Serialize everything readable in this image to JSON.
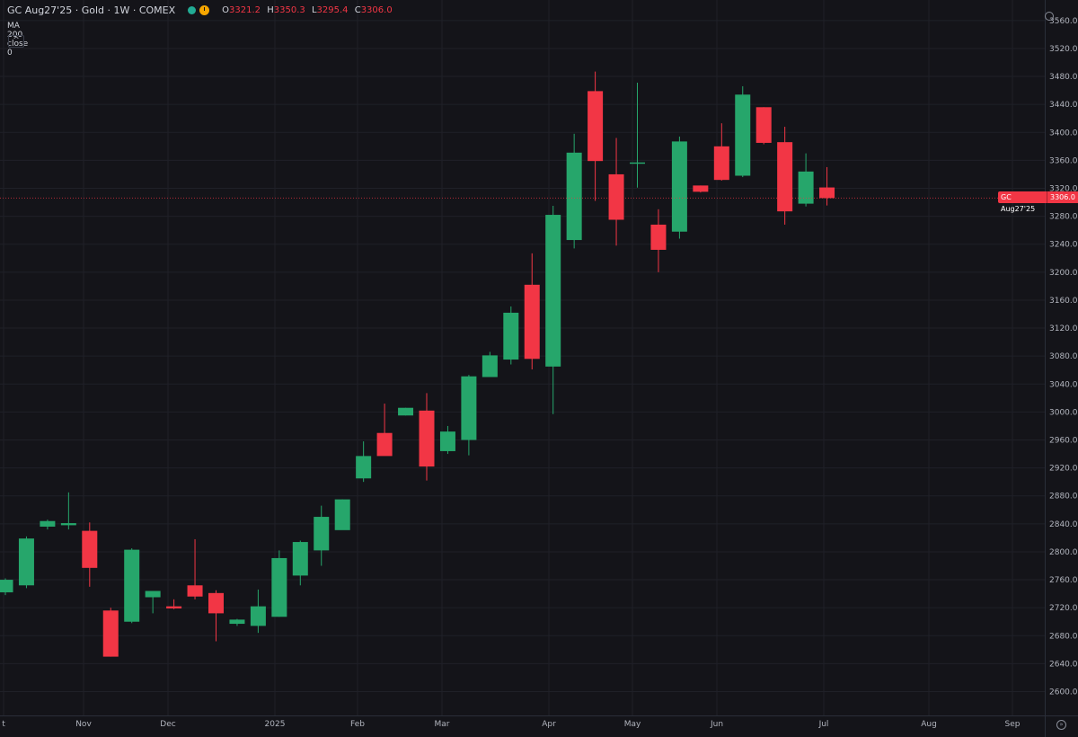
{
  "header": {
    "symbol_title": "GC Aug27'25 · Gold · 1W · COMEX",
    "ohlc": {
      "o_label": "O",
      "o_value": "3321.2",
      "h_label": "H",
      "h_value": "3350.3",
      "l_label": "L",
      "l_value": "3295.4",
      "c_label": "C",
      "c_value": "3306.0"
    },
    "indicator_label": "MA 200 close 0",
    "collapse_icon": "chevron-up-icon",
    "settings_icon": "gear-icon"
  },
  "price_tag": {
    "name": "GC Aug27'25",
    "price": "3306.0"
  },
  "colors": {
    "up": "#26a66b",
    "down": "#f23645",
    "background": "#141419",
    "grid": "#1f2028"
  },
  "chart_data": {
    "type": "candlestick",
    "yticks": [
      "2600.0",
      "2640.0",
      "2680.0",
      "2720.0",
      "2760.0",
      "2800.0",
      "2840.0",
      "2880.0",
      "2920.0",
      "2960.0",
      "3000.0",
      "3040.0",
      "3080.0",
      "3120.0",
      "3160.0",
      "3200.0",
      "3240.0",
      "3280.0",
      "3320.0",
      "3360.0",
      "3400.0",
      "3440.0",
      "3480.0",
      "3520.0",
      "3560.0"
    ],
    "xticks": [
      "t",
      "Nov",
      "Dec",
      "2025",
      "Feb",
      "Mar",
      "Apr",
      "May",
      "Jun",
      "Jul",
      "Aug",
      "Sep"
    ],
    "ylim": [
      2580,
      3585
    ],
    "last_price": 3306.0,
    "candles": [
      {
        "date": "2024-10-14",
        "o": 2742,
        "h": 2762,
        "l": 2738,
        "c": 2760
      },
      {
        "date": "2024-10-21",
        "o": 2752,
        "h": 2822,
        "l": 2748,
        "c": 2819
      },
      {
        "date": "2024-10-28",
        "o": 2836,
        "h": 2846,
        "l": 2832,
        "c": 2844
      },
      {
        "date": "2024-11-04",
        "o": 2838,
        "h": 2885,
        "l": 2832,
        "c": 2841
      },
      {
        "date": "2024-11-11",
        "o": 2830,
        "h": 2842,
        "l": 2750,
        "c": 2777
      },
      {
        "date": "2024-11-18",
        "o": 2716,
        "h": 2720,
        "l": 2650,
        "c": 2650
      },
      {
        "date": "2024-11-25",
        "o": 2700,
        "h": 2805,
        "l": 2698,
        "c": 2803
      },
      {
        "date": "2024-12-02",
        "o": 2735,
        "h": 2744,
        "l": 2712,
        "c": 2744
      },
      {
        "date": "2024-12-09",
        "o": 2722,
        "h": 2732,
        "l": 2718,
        "c": 2719
      },
      {
        "date": "2024-12-16",
        "o": 2752,
        "h": 2818,
        "l": 2732,
        "c": 2736
      },
      {
        "date": "2024-12-23",
        "o": 2741,
        "h": 2745,
        "l": 2672,
        "c": 2712
      },
      {
        "date": "2024-12-30",
        "o": 2697,
        "h": 2704,
        "l": 2694,
        "c": 2703
      },
      {
        "date": "2025-01-06",
        "o": 2694,
        "h": 2746,
        "l": 2684,
        "c": 2722
      },
      {
        "date": "2025-01-13",
        "o": 2707,
        "h": 2802,
        "l": 2707,
        "c": 2791
      },
      {
        "date": "2025-01-20",
        "o": 2766,
        "h": 2816,
        "l": 2752,
        "c": 2814
      },
      {
        "date": "2025-01-27",
        "o": 2802,
        "h": 2866,
        "l": 2780,
        "c": 2850
      },
      {
        "date": "2025-02-03",
        "o": 2831,
        "h": 2875,
        "l": 2832,
        "c": 2875
      },
      {
        "date": "2025-02-10",
        "o": 2905,
        "h": 2958,
        "l": 2900,
        "c": 2937
      },
      {
        "date": "2025-02-17",
        "o": 2970,
        "h": 3012,
        "l": 2938,
        "c": 2937
      },
      {
        "date": "2025-02-24",
        "o": 2995,
        "h": 3006,
        "l": 2995,
        "c": 3006
      },
      {
        "date": "2025-03-03",
        "o": 3002,
        "h": 3027,
        "l": 2902,
        "c": 2922
      },
      {
        "date": "2025-03-10",
        "o": 2944,
        "h": 2980,
        "l": 2940,
        "c": 2972
      },
      {
        "date": "2025-03-17",
        "o": 2960,
        "h": 3053,
        "l": 2938,
        "c": 3051
      },
      {
        "date": "2025-03-24",
        "o": 3050,
        "h": 3086,
        "l": 3050,
        "c": 3081
      },
      {
        "date": "2025-03-31",
        "o": 3075,
        "h": 3151,
        "l": 3068,
        "c": 3142
      },
      {
        "date": "2025-04-07",
        "o": 3182,
        "h": 3227,
        "l": 3061,
        "c": 3076
      },
      {
        "date": "2025-04-14",
        "o": 3065,
        "h": 3295,
        "l": 2997,
        "c": 3282
      },
      {
        "date": "2025-04-21",
        "o": 3246,
        "h": 3398,
        "l": 3234,
        "c": 3371
      },
      {
        "date": "2025-04-28",
        "o": 3459,
        "h": 3487,
        "l": 3302,
        "c": 3359
      },
      {
        "date": "2025-05-05",
        "o": 3340,
        "h": 3392,
        "l": 3238,
        "c": 3275
      },
      {
        "date": "2025-05-12",
        "o": 3356,
        "h": 3471,
        "l": 3321,
        "c": 3357
      },
      {
        "date": "2025-05-19",
        "o": 3268,
        "h": 3290,
        "l": 3200,
        "c": 3232
      },
      {
        "date": "2025-05-26",
        "o": 3258,
        "h": 3394,
        "l": 3248,
        "c": 3387
      },
      {
        "date": "2025-06-02",
        "o": 3324,
        "h": 3324,
        "l": 3314,
        "c": 3315
      },
      {
        "date": "2025-06-09",
        "o": 3380,
        "h": 3413,
        "l": 3331,
        "c": 3332
      },
      {
        "date": "2025-06-16",
        "o": 3338,
        "h": 3466,
        "l": 3336,
        "c": 3454
      },
      {
        "date": "2025-06-23",
        "o": 3436,
        "h": 3436,
        "l": 3383,
        "c": 3385
      },
      {
        "date": "2025-06-30",
        "o": 3386,
        "h": 3408,
        "l": 3268,
        "c": 3287
      },
      {
        "date": "2025-07-07",
        "o": 3298,
        "h": 3370,
        "l": 3294,
        "c": 3344
      },
      {
        "date": "2025-07-14",
        "o": 3321.2,
        "h": 3350.3,
        "l": 3295.4,
        "c": 3306.0
      }
    ]
  }
}
